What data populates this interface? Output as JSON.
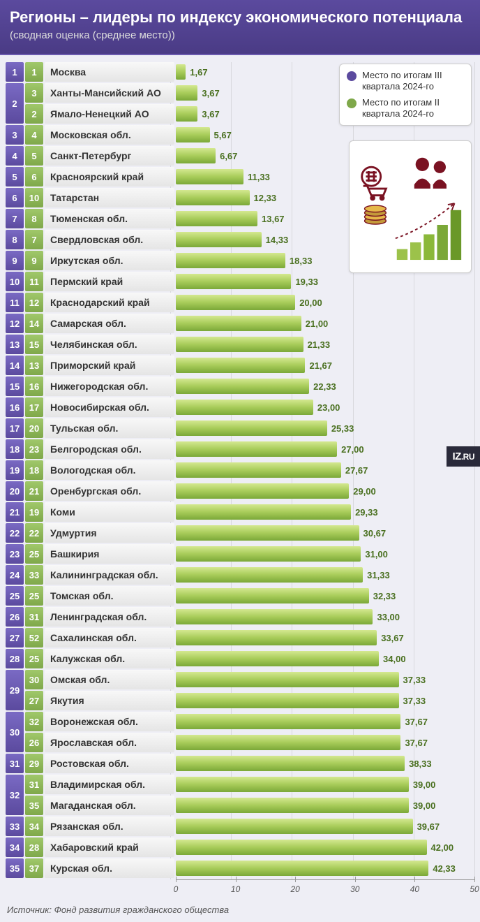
{
  "header": {
    "title": "Регионы – лидеры по индексу экономического потенциала",
    "subtitle": "(сводная оценка (среднее место))"
  },
  "legend": {
    "items": [
      {
        "color": "#5b4a9e",
        "text": "Место по итогам III квартала 2024-го"
      },
      {
        "color": "#7fa84a",
        "text": "Место по итогам II квартала 2024-го"
      }
    ]
  },
  "chart": {
    "type": "bar",
    "xmax": 50,
    "ticks": [
      0,
      10,
      20,
      30,
      40,
      50
    ],
    "bar_gradient": [
      "#d4e890",
      "#a8cc5a",
      "#7ba838"
    ],
    "value_color": "#4a7020",
    "rank_q3_bg": [
      "#7a6ac4",
      "#5b4a9e"
    ],
    "rank_q2_bg": [
      "#a0c86a",
      "#7fa84a"
    ],
    "background_color": "#eeeef5",
    "grid_color": "rgba(150,150,150,0.25)",
    "label_fontsize": 14,
    "value_fontsize": 13,
    "rank_fontsize": 13,
    "rows": [
      {
        "q3": "1",
        "q2": "1",
        "name": "Москва",
        "value": "1,67",
        "v": 1.67
      },
      {
        "q3": "2",
        "q2": "3",
        "name": "Ханты-Мансийский АО",
        "value": "3,67",
        "v": 3.67,
        "merge": 2
      },
      {
        "q3": "",
        "q2": "2",
        "name": "Ямало-Ненецкий АО",
        "value": "3,67",
        "v": 3.67,
        "merged": true
      },
      {
        "q3": "3",
        "q2": "4",
        "name": "Московская обл.",
        "value": "5,67",
        "v": 5.67
      },
      {
        "q3": "4",
        "q2": "5",
        "name": "Санкт-Петербург",
        "value": "6,67",
        "v": 6.67
      },
      {
        "q3": "5",
        "q2": "6",
        "name": "Красноярский край",
        "value": "11,33",
        "v": 11.33
      },
      {
        "q3": "6",
        "q2": "10",
        "name": "Татарстан",
        "value": "12,33",
        "v": 12.33
      },
      {
        "q3": "7",
        "q2": "8",
        "name": "Тюменская обл.",
        "value": "13,67",
        "v": 13.67
      },
      {
        "q3": "8",
        "q2": "7",
        "name": "Свердловская обл.",
        "value": "14,33",
        "v": 14.33
      },
      {
        "q3": "9",
        "q2": "9",
        "name": "Иркутская обл.",
        "value": "18,33",
        "v": 18.33
      },
      {
        "q3": "10",
        "q2": "11",
        "name": "Пермский край",
        "value": "19,33",
        "v": 19.33
      },
      {
        "q3": "11",
        "q2": "12",
        "name": "Краснодарский край",
        "value": "20,00",
        "v": 20.0
      },
      {
        "q3": "12",
        "q2": "14",
        "name": "Самарская обл.",
        "value": "21,00",
        "v": 21.0
      },
      {
        "q3": "13",
        "q2": "15",
        "name": "Челябинская обл.",
        "value": "21,33",
        "v": 21.33
      },
      {
        "q3": "14",
        "q2": "13",
        "name": "Приморский край",
        "value": "21,67",
        "v": 21.67
      },
      {
        "q3": "15",
        "q2": "16",
        "name": "Нижегородская обл.",
        "value": "22,33",
        "v": 22.33
      },
      {
        "q3": "16",
        "q2": "17",
        "name": "Новосибирская обл.",
        "value": "23,00",
        "v": 23.0
      },
      {
        "q3": "17",
        "q2": "20",
        "name": "Тульская обл.",
        "value": "25,33",
        "v": 25.33
      },
      {
        "q3": "18",
        "q2": "23",
        "name": "Белгородская обл.",
        "value": "27,00",
        "v": 27.0
      },
      {
        "q3": "19",
        "q2": "18",
        "name": "Вологодская обл.",
        "value": "27,67",
        "v": 27.67
      },
      {
        "q3": "20",
        "q2": "21",
        "name": "Оренбургская обл.",
        "value": "29,00",
        "v": 29.0
      },
      {
        "q3": "21",
        "q2": "19",
        "name": "Коми",
        "value": "29,33",
        "v": 29.33
      },
      {
        "q3": "22",
        "q2": "22",
        "name": "Удмуртия",
        "value": "30,67",
        "v": 30.67
      },
      {
        "q3": "23",
        "q2": "25",
        "name": "Башкирия",
        "value": "31,00",
        "v": 31.0
      },
      {
        "q3": "24",
        "q2": "33",
        "name": "Калининградская обл.",
        "value": "31,33",
        "v": 31.33
      },
      {
        "q3": "25",
        "q2": "25",
        "name": "Томская обл.",
        "value": "32,33",
        "v": 32.33
      },
      {
        "q3": "26",
        "q2": "31",
        "name": "Ленинградская обл.",
        "value": "33,00",
        "v": 33.0
      },
      {
        "q3": "27",
        "q2": "52",
        "name": "Сахалинская обл.",
        "value": "33,67",
        "v": 33.67
      },
      {
        "q3": "28",
        "q2": "25",
        "name": "Калужская обл.",
        "value": "34,00",
        "v": 34.0
      },
      {
        "q3": "29",
        "q2": "30",
        "name": "Омская обл.",
        "value": "37,33",
        "v": 37.33,
        "merge": 2
      },
      {
        "q3": "",
        "q2": "27",
        "name": "Якутия",
        "value": "37,33",
        "v": 37.33,
        "merged": true
      },
      {
        "q3": "30",
        "q2": "32",
        "name": "Воронежская обл.",
        "value": "37,67",
        "v": 37.67,
        "merge": 2
      },
      {
        "q3": "",
        "q2": "26",
        "name": "Ярославская обл.",
        "value": "37,67",
        "v": 37.67,
        "merged": true
      },
      {
        "q3": "31",
        "q2": "29",
        "name": "Ростовская обл.",
        "value": "38,33",
        "v": 38.33
      },
      {
        "q3": "32",
        "q2": "31",
        "name": "Владимирская обл.",
        "value": "39,00",
        "v": 39.0,
        "merge": 2
      },
      {
        "q3": "",
        "q2": "35",
        "name": "Магаданская обл.",
        "value": "39,00",
        "v": 39.0,
        "merged": true
      },
      {
        "q3": "33",
        "q2": "34",
        "name": "Рязанская обл.",
        "value": "39,67",
        "v": 39.67
      },
      {
        "q3": "34",
        "q2": "28",
        "name": "Хабаровский край",
        "value": "42,00",
        "v": 42.0
      },
      {
        "q3": "35",
        "q2": "37",
        "name": "Курская обл.",
        "value": "42,33",
        "v": 42.33
      }
    ]
  },
  "logo": {
    "line1": "IZ",
    "line2": ".RU"
  },
  "footer": {
    "source": "Источник: Фонд развития гражданского общества"
  }
}
